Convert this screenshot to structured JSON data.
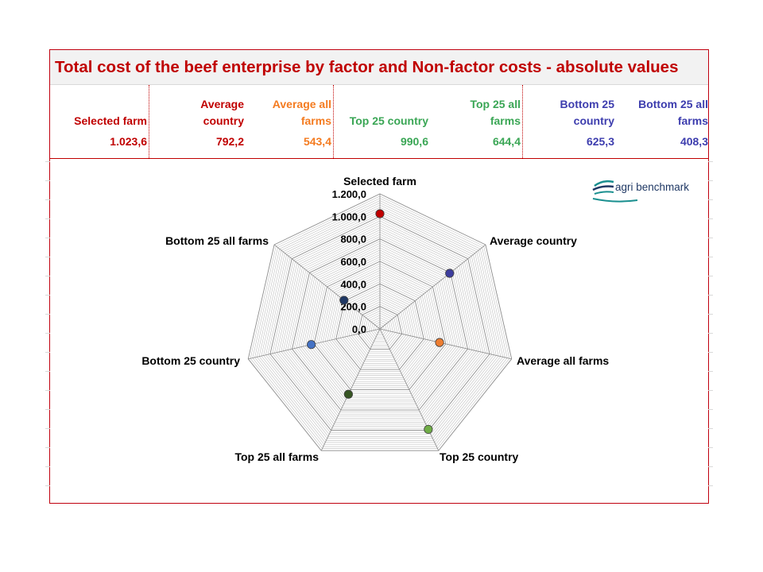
{
  "title": "Total cost of the beef enterprise by factor and Non-factor costs - absolute values",
  "stats": [
    {
      "label": [
        "Selected farm"
      ],
      "value": "1.023,6",
      "color": "#c00000"
    },
    {
      "label": [
        "Average",
        "country"
      ],
      "value": "792,2",
      "color": "#c00000"
    },
    {
      "label": [
        "Average all",
        "farms"
      ],
      "value": "543,4",
      "color": "#f47b20"
    },
    {
      "label": [
        "Top 25 country"
      ],
      "value": "990,6",
      "color": "#3aa655"
    },
    {
      "label": [
        "Top 25 all",
        "farms"
      ],
      "value": "644,4",
      "color": "#3aa655"
    },
    {
      "label": [
        "Bottom 25",
        "country"
      ],
      "value": "625,3",
      "color": "#3d3dae"
    },
    {
      "label": [
        "Bottom 25 all",
        "farms"
      ],
      "value": "408,3",
      "color": "#3d3dae"
    }
  ],
  "logo": {
    "text": "agri benchmark",
    "color": "#1f3864"
  },
  "chart_data": {
    "type": "radar",
    "title": "",
    "categories": [
      "Selected farm",
      "Average country",
      "Average all farms",
      "Top 25 country",
      "Top 25 all farms",
      "Bottom 25 country",
      "Bottom 25 all farms"
    ],
    "values": [
      1023.6,
      792.2,
      543.4,
      990.6,
      644.4,
      625.3,
      408.3
    ],
    "marker_colors": [
      "#c00000",
      "#3d3d9e",
      "#ed7d31",
      "#70ad47",
      "#375623",
      "#4472c4",
      "#1f3864"
    ],
    "ylim": [
      0,
      1200
    ],
    "tick_labels": [
      "0,0",
      "200,0",
      "400,0",
      "600,0",
      "800,0",
      "1.000,0",
      "1.200,0"
    ],
    "minor_grid_step": 20,
    "grid": true
  }
}
